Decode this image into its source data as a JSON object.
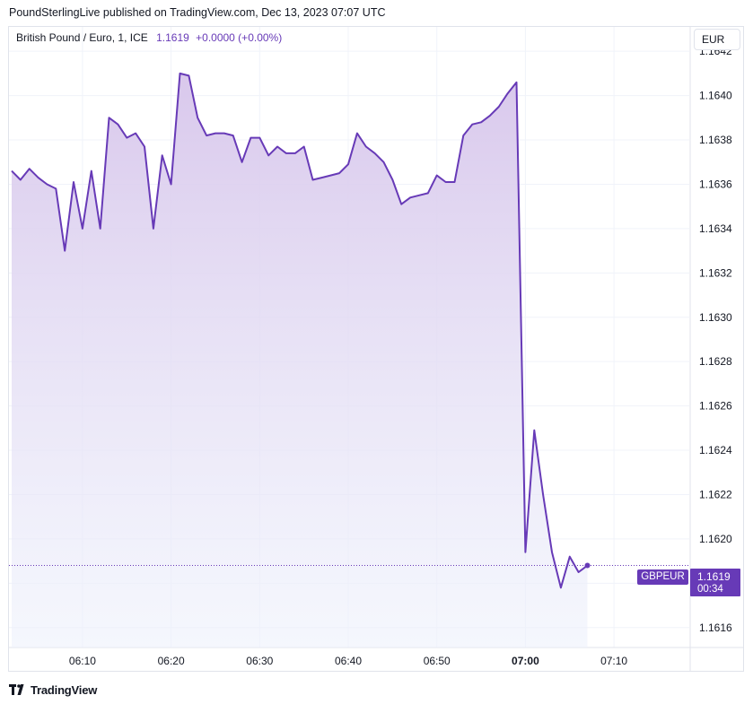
{
  "publisher_line": "PoundSterlingLive published on TradingView.com, Dec 13, 2023 07:07 UTC",
  "legend": {
    "symbol": "British Pound / Euro, 1, ICE",
    "price": "1.1619",
    "change": "+0.0000 (+0.00%)"
  },
  "currency_button": "EUR",
  "symbol_tag": "GBPEUR",
  "last_price_label": "1.1619",
  "countdown": "00:34",
  "brand": "TradingView",
  "colors": {
    "line": "#673ab7",
    "area_top": "#d9c8ec",
    "area_bottom": "#eef2fc",
    "grid": "#f0f3fa",
    "border": "#e0e3eb"
  },
  "chart_data": {
    "type": "area",
    "x_unit": "time (UTC), 1-minute bars",
    "x_ticks": [
      "06:10",
      "06:20",
      "06:30",
      "06:40",
      "06:50",
      "07:00",
      "07:10"
    ],
    "x_ticks_bold": [
      "07:00"
    ],
    "y_ticks": [
      "1.1616",
      "1.1618",
      "1.1620",
      "1.1622",
      "1.1624",
      "1.1626",
      "1.1628",
      "1.1630",
      "1.1632",
      "1.1634",
      "1.1636",
      "1.1638",
      "1.1640",
      "1.1642"
    ],
    "xlim": [
      "06:01.7",
      "07:18.5"
    ],
    "ylim": [
      1.16151,
      1.16431
    ],
    "last_value": 1.16188,
    "grid": true,
    "series": [
      {
        "x": [
          "06:02",
          "06:03",
          "06:04",
          "06:05",
          "06:06",
          "06:07",
          "06:08",
          "06:09",
          "06:10",
          "06:11",
          "06:12",
          "06:13",
          "06:14",
          "06:15",
          "06:16",
          "06:17",
          "06:18",
          "06:19",
          "06:20",
          "06:21",
          "06:22",
          "06:23",
          "06:24",
          "06:25",
          "06:26",
          "06:27",
          "06:28",
          "06:29",
          "06:30",
          "06:31",
          "06:32",
          "06:33",
          "06:34",
          "06:35",
          "06:36",
          "06:37",
          "06:38",
          "06:39",
          "06:40",
          "06:41",
          "06:42",
          "06:43",
          "06:44",
          "06:45",
          "06:46",
          "06:47",
          "06:48",
          "06:49",
          "06:50",
          "06:51",
          "06:52",
          "06:53",
          "06:54",
          "06:55",
          "06:56",
          "06:57",
          "06:58",
          "06:59",
          "07:00",
          "07:01",
          "07:02",
          "07:03",
          "07:04",
          "07:05",
          "07:06",
          "07:07"
        ],
        "y": [
          1.16366,
          1.16362,
          1.16367,
          1.16363,
          1.1636,
          1.16358,
          1.1633,
          1.16361,
          1.1634,
          1.16366,
          1.1634,
          1.1639,
          1.16387,
          1.16381,
          1.16383,
          1.16377,
          1.1634,
          1.16373,
          1.1636,
          1.1641,
          1.16409,
          1.1639,
          1.16382,
          1.16383,
          1.16383,
          1.16382,
          1.1637,
          1.16381,
          1.16381,
          1.16373,
          1.16377,
          1.16374,
          1.16374,
          1.16377,
          1.16362,
          1.16363,
          1.16364,
          1.16365,
          1.16369,
          1.16383,
          1.16377,
          1.16374,
          1.1637,
          1.16362,
          1.16351,
          1.16354,
          1.16355,
          1.16356,
          1.16364,
          1.16361,
          1.16361,
          1.16382,
          1.16387,
          1.16388,
          1.16391,
          1.16395,
          1.16401,
          1.16406,
          1.16194,
          1.16249,
          1.1622,
          1.16194,
          1.16178,
          1.16192,
          1.16185,
          1.16188
        ]
      }
    ]
  }
}
